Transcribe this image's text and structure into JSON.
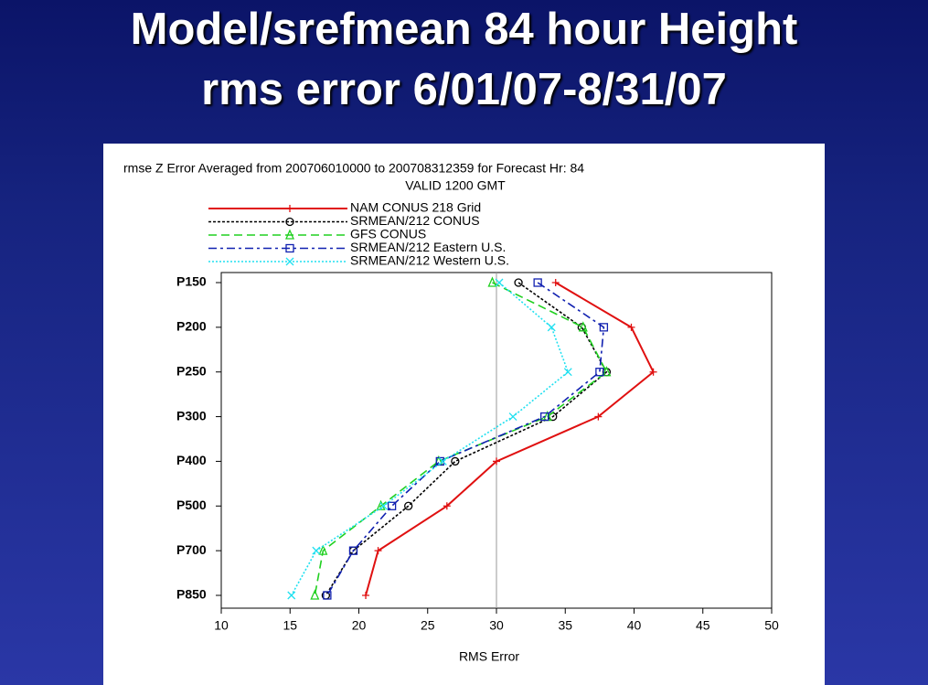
{
  "slide": {
    "title_lines": [
      "Model/srefmean 84 hour Height",
      "rms error 6/01/07-8/31/07"
    ]
  },
  "chart_data": {
    "type": "line",
    "orientation": "horizontal",
    "title": "rmse Z Error Averaged from 200706010000 to 200708312359 for Forecast Hr: 84",
    "subtitle": "VALID 1200 GMT",
    "x_label": "RMS Error",
    "categories": [
      "P150",
      "P200",
      "P250",
      "P300",
      "P400",
      "P500",
      "P700",
      "P850"
    ],
    "xlim": [
      10,
      50
    ],
    "xticks": [
      10,
      15,
      20,
      25,
      30,
      35,
      40,
      45,
      50
    ],
    "reference_line": 30,
    "series": [
      {
        "name": "NAM CONUS 218 Grid",
        "color": "#e01010",
        "marker": "plus",
        "dash": "solid",
        "values": [
          34.3,
          39.8,
          41.4,
          37.4,
          30.0,
          26.4,
          21.4,
          20.5
        ]
      },
      {
        "name": "SRMEAN/212 CONUS",
        "color": "#000000",
        "marker": "circle",
        "dash": "dotted",
        "values": [
          31.6,
          36.2,
          38.0,
          34.1,
          27.0,
          23.6,
          19.6,
          17.6
        ]
      },
      {
        "name": "GFS CONUS",
        "color": "#20d020",
        "marker": "triangle",
        "dash": "dashed",
        "values": [
          29.7,
          36.3,
          38.0,
          33.7,
          25.8,
          21.6,
          17.4,
          16.8
        ]
      },
      {
        "name": "SRMEAN/212 Eastern U.S.",
        "color": "#1020b0",
        "marker": "square",
        "dash": "dashdot",
        "values": [
          33.0,
          37.8,
          37.5,
          33.5,
          25.9,
          22.4,
          19.6,
          17.7
        ]
      },
      {
        "name": "SRMEAN/212 Western U.S.",
        "color": "#20e0f0",
        "marker": "x",
        "dash": "dots",
        "values": [
          30.2,
          34.0,
          35.2,
          31.2,
          26.1,
          21.8,
          16.9,
          15.1
        ]
      }
    ]
  }
}
